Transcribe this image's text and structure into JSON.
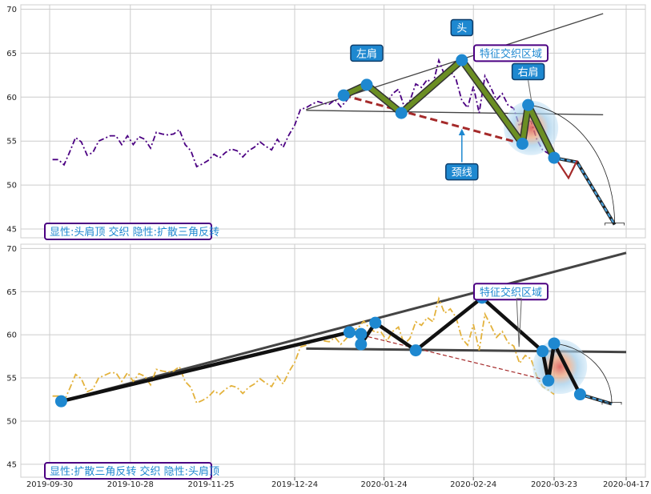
{
  "chart_data": [
    {
      "type": "line",
      "panel": "top",
      "ylim": [
        44,
        70.5
      ],
      "yticks": [
        45,
        50,
        55,
        60,
        65,
        70
      ],
      "grid": true,
      "colors": {
        "price": "#4b0082",
        "pattern": "#6b8e23",
        "pattern_edge": "#333333",
        "neckline": "#a52a2a",
        "marker": "#1e88d0",
        "trend": "#444444",
        "projection": "#4aa3df"
      },
      "series": [
        {
          "role": "price",
          "style": "dash-dot",
          "x": [
            "2019-10-01",
            "2019-10-03",
            "2019-10-05",
            "2019-10-07",
            "2019-10-09",
            "2019-10-11",
            "2019-10-13",
            "2019-10-15",
            "2019-10-17",
            "2019-10-19",
            "2019-10-21",
            "2019-10-23",
            "2019-10-25",
            "2019-10-27",
            "2019-10-29",
            "2019-10-31",
            "2019-11-02",
            "2019-11-04",
            "2019-11-06",
            "2019-11-08",
            "2019-11-10",
            "2019-11-12",
            "2019-11-14",
            "2019-11-16",
            "2019-11-18",
            "2019-11-20",
            "2019-11-22",
            "2019-11-24",
            "2019-11-26",
            "2019-11-28",
            "2019-11-30",
            "2019-12-02",
            "2019-12-04",
            "2019-12-06",
            "2019-12-08",
            "2019-12-10",
            "2019-12-12",
            "2019-12-14",
            "2019-12-16",
            "2019-12-18",
            "2019-12-20",
            "2019-12-22",
            "2019-12-24",
            "2019-12-26",
            "2019-12-28",
            "2019-12-30",
            "2020-01-01",
            "2020-01-03",
            "2020-01-05",
            "2020-01-07",
            "2020-01-09",
            "2020-01-11",
            "2020-01-13",
            "2020-01-15",
            "2020-01-17",
            "2020-01-19",
            "2020-01-21",
            "2020-01-23",
            "2020-01-25",
            "2020-01-27",
            "2020-01-29",
            "2020-01-31",
            "2020-02-02",
            "2020-02-04",
            "2020-02-06",
            "2020-02-08",
            "2020-02-10",
            "2020-02-12",
            "2020-02-14",
            "2020-02-16",
            "2020-02-18",
            "2020-02-20",
            "2020-02-22",
            "2020-02-24",
            "2020-02-26",
            "2020-02-28",
            "2020-03-01",
            "2020-03-03",
            "2020-03-05",
            "2020-03-07",
            "2020-03-09",
            "2020-03-11",
            "2020-03-13",
            "2020-03-15",
            "2020-03-17",
            "2020-03-19",
            "2020-03-21",
            "2020-03-23"
          ],
          "y": [
            52.9,
            52.9,
            52.3,
            53.8,
            55.4,
            54.9,
            53.4,
            53.7,
            55.0,
            55.3,
            55.6,
            55.6,
            54.6,
            55.6,
            54.6,
            55.5,
            55.2,
            54.2,
            56.0,
            55.8,
            55.7,
            55.8,
            56.3,
            54.6,
            53.9,
            52.1,
            52.4,
            52.8,
            53.5,
            53.1,
            53.7,
            54.1,
            53.9,
            53.2,
            53.9,
            54.3,
            54.9,
            54.4,
            54.0,
            55.2,
            54.3,
            55.7,
            56.8,
            58.6,
            58.8,
            59.2,
            59.5,
            59.3,
            59.2,
            59.7,
            58.9,
            59.6,
            60.5,
            60.8,
            61.6,
            60.7,
            60.3,
            60.3,
            59.3,
            60.4,
            60.9,
            58.9,
            59.6,
            61.5,
            61.1,
            62.0,
            61.5,
            64.2,
            62.5,
            63.0,
            62.0,
            59.6,
            58.8,
            61.2,
            58.2,
            62.4,
            61.1,
            59.7,
            60.4,
            59.1,
            58.7,
            56.7,
            57.6,
            57.2,
            55.2,
            54.0,
            53.6,
            53.1
          ]
        },
        {
          "role": "pattern",
          "x": [
            "2020-01-10",
            "2020-01-18",
            "2020-01-30",
            "2020-02-20",
            "2020-03-12",
            "2020-03-14",
            "2020-03-23"
          ],
          "y": [
            60.2,
            61.4,
            58.2,
            64.2,
            54.7,
            59.1,
            53.1
          ]
        },
        {
          "role": "neckline",
          "style": "dashed",
          "x": [
            "2020-01-10",
            "2020-03-12"
          ],
          "y": [
            60.2,
            54.7
          ]
        },
        {
          "role": "upper-trendline",
          "x": [
            "2019-12-28",
            "2020-04-09"
          ],
          "y": [
            58.6,
            69.5
          ]
        },
        {
          "role": "lower-trendline",
          "x": [
            "2019-12-28",
            "2020-04-09"
          ],
          "y": [
            58.5,
            58.0
          ]
        },
        {
          "role": "projection",
          "x": [
            "2020-03-23",
            "2020-03-31",
            "2020-04-13"
          ],
          "y": [
            53.1,
            52.6,
            45.5
          ]
        },
        {
          "role": "projection-step",
          "x": [
            "2020-03-24",
            "2020-03-28",
            "2020-03-31"
          ],
          "y": [
            52.8,
            50.8,
            52.8
          ]
        }
      ],
      "annotations": [
        {
          "text": "头",
          "x": "2020-02-20",
          "y": 67.9,
          "style": "badge"
        },
        {
          "text": "左肩",
          "x": "2020-01-18",
          "y": 65.0,
          "style": "badge"
        },
        {
          "text": "特征交织区域",
          "x": "2020-03-08",
          "y": 65.0,
          "style": "box"
        },
        {
          "text": "右肩",
          "x": "2020-03-14",
          "y": 62.9,
          "style": "badge"
        },
        {
          "text": "颈线",
          "x": "2020-02-20",
          "y": 51.5,
          "style": "badge"
        }
      ],
      "legend_text": "显性:头肩顶 交织 隐性:扩散三角反转"
    },
    {
      "type": "line",
      "panel": "bottom",
      "ylim": [
        43.5,
        70.5
      ],
      "yticks": [
        45,
        50,
        55,
        60,
        65,
        70
      ],
      "xticks": [
        "2019-09-30",
        "2019-10-28",
        "2019-11-25",
        "2019-12-24",
        "2020-01-24",
        "2020-02-24",
        "2020-03-23",
        "2020-04-17"
      ],
      "grid": true,
      "colors": {
        "price": "#e3b23c",
        "pattern": "#111111",
        "neckline": "#a52a2a",
        "marker": "#1e88d0",
        "trend": "#444444",
        "projection": "#4aa3df"
      },
      "series": [
        {
          "role": "price",
          "style": "dash-dot",
          "x": [
            "2019-10-01",
            "2019-10-03",
            "2019-10-05",
            "2019-10-07",
            "2019-10-09",
            "2019-10-11",
            "2019-10-13",
            "2019-10-15",
            "2019-10-17",
            "2019-10-19",
            "2019-10-21",
            "2019-10-23",
            "2019-10-25",
            "2019-10-27",
            "2019-10-29",
            "2019-10-31",
            "2019-11-02",
            "2019-11-04",
            "2019-11-06",
            "2019-11-08",
            "2019-11-10",
            "2019-11-12",
            "2019-11-14",
            "2019-11-16",
            "2019-11-18",
            "2019-11-20",
            "2019-11-22",
            "2019-11-24",
            "2019-11-26",
            "2019-11-28",
            "2019-11-30",
            "2019-12-02",
            "2019-12-04",
            "2019-12-06",
            "2019-12-08",
            "2019-12-10",
            "2019-12-12",
            "2019-12-14",
            "2019-12-16",
            "2019-12-18",
            "2019-12-20",
            "2019-12-22",
            "2019-12-24",
            "2019-12-26",
            "2019-12-28",
            "2019-12-30",
            "2020-01-01",
            "2020-01-03",
            "2020-01-05",
            "2020-01-07",
            "2020-01-09",
            "2020-01-11",
            "2020-01-13",
            "2020-01-15",
            "2020-01-17",
            "2020-01-19",
            "2020-01-21",
            "2020-01-23",
            "2020-01-25",
            "2020-01-27",
            "2020-01-29",
            "2020-01-31",
            "2020-02-02",
            "2020-02-04",
            "2020-02-06",
            "2020-02-08",
            "2020-02-10",
            "2020-02-12",
            "2020-02-14",
            "2020-02-16",
            "2020-02-18",
            "2020-02-20",
            "2020-02-22",
            "2020-02-24",
            "2020-02-26",
            "2020-02-28",
            "2020-03-01",
            "2020-03-03",
            "2020-03-05",
            "2020-03-07",
            "2020-03-09",
            "2020-03-11",
            "2020-03-13",
            "2020-03-15",
            "2020-03-17",
            "2020-03-19",
            "2020-03-21",
            "2020-03-23"
          ],
          "y": [
            52.9,
            52.9,
            52.3,
            53.8,
            55.4,
            54.9,
            53.4,
            53.7,
            55.0,
            55.3,
            55.6,
            55.6,
            54.6,
            55.6,
            54.6,
            55.5,
            55.2,
            54.2,
            56.0,
            55.8,
            55.7,
            55.8,
            56.3,
            54.6,
            53.9,
            52.1,
            52.4,
            52.8,
            53.5,
            53.1,
            53.7,
            54.1,
            53.9,
            53.2,
            53.9,
            54.3,
            54.9,
            54.4,
            54.0,
            55.2,
            54.3,
            55.7,
            56.8,
            58.6,
            58.8,
            59.2,
            59.5,
            59.3,
            59.2,
            59.7,
            58.9,
            59.6,
            60.5,
            60.8,
            61.6,
            60.7,
            60.3,
            60.3,
            59.3,
            60.4,
            60.9,
            58.9,
            59.6,
            61.5,
            61.1,
            62.0,
            61.5,
            64.2,
            62.5,
            63.0,
            62.0,
            59.6,
            58.8,
            61.2,
            58.2,
            62.4,
            61.1,
            59.7,
            60.4,
            59.1,
            58.7,
            56.7,
            57.6,
            57.2,
            55.2,
            54.0,
            53.6,
            53.1
          ]
        },
        {
          "role": "pattern",
          "x": [
            "2019-10-04",
            "2020-01-12",
            "2020-01-16",
            "2020-01-16",
            "2020-01-21",
            "2020-02-04",
            "2020-02-27",
            "2020-03-19",
            "2020-03-21",
            "2020-03-23",
            "2020-04-01"
          ],
          "y": [
            52.3,
            60.3,
            60.1,
            58.9,
            61.4,
            58.2,
            64.3,
            58.1,
            54.7,
            59.0,
            53.1
          ]
        },
        {
          "role": "neckline",
          "style": "dashed",
          "x": [
            "2020-01-12",
            "2020-03-21"
          ],
          "y": [
            60.3,
            54.7
          ]
        },
        {
          "role": "upper-trendline",
          "x": [
            "2019-10-04",
            "2020-04-17"
          ],
          "y": [
            52.3,
            69.5
          ]
        },
        {
          "role": "lower-trendline",
          "x": [
            "2019-12-28",
            "2020-04-17"
          ],
          "y": [
            58.4,
            58.0
          ]
        },
        {
          "role": "projection",
          "x": [
            "2020-04-01",
            "2020-04-12"
          ],
          "y": [
            53.1,
            52.0
          ]
        }
      ],
      "annotations": [
        {
          "text": "特征交织区域",
          "x": "2020-03-08",
          "y": 65.0,
          "style": "box"
        }
      ],
      "legend_text": "显性:扩散三角反转 交织 隐性:头肩顶"
    }
  ]
}
